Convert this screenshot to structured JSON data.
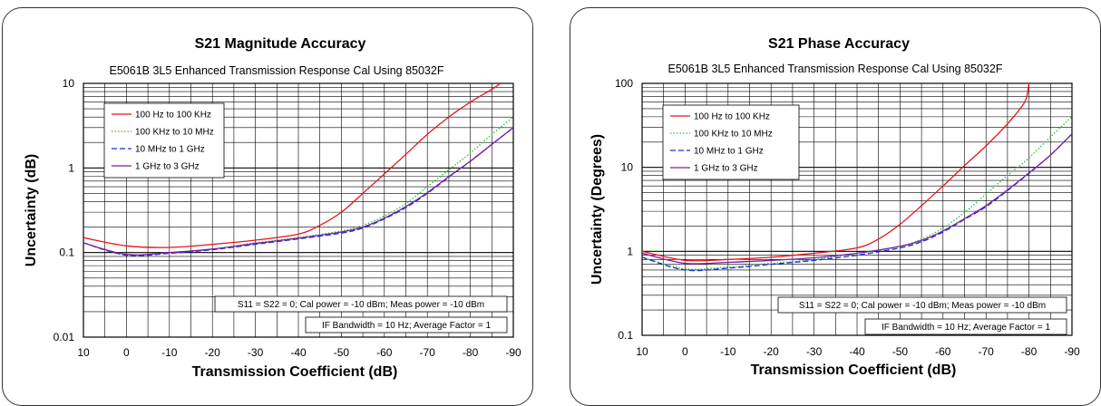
{
  "chart_data": [
    {
      "type": "line",
      "title": "S21 Magnitude Accuracy",
      "subtitle": "E5061B 3L5 Enhanced Transmission Response Cal Using 85032F",
      "xlabel": "Transmission Coefficient (dB)",
      "ylabel": "Uncertainty (dB)",
      "xlim": [
        10,
        -90
      ],
      "ylim": [
        0.01,
        10
      ],
      "yscale": "log",
      "grid": true,
      "x_ticks": [
        "10",
        "0",
        "-10",
        "-20",
        "-30",
        "-40",
        "-50",
        "-60",
        "-70",
        "-80",
        "-90"
      ],
      "y_ticks": [
        "0.01",
        "0.1",
        "1",
        "10"
      ],
      "legend_position": "top-left",
      "notes": [
        "S11 = S22 = 0; Cal power = -10 dBm; Meas power = -10 dBm",
        "IF Bandwidth = 10 Hz; Average Factor = 1"
      ],
      "series": [
        {
          "name": "100 Hz to 100 KHz",
          "color": "#e8141b",
          "dash": "solid",
          "x": [
            10,
            0,
            -10,
            -20,
            -30,
            -40,
            -45,
            -50,
            -55,
            -60,
            -65,
            -70,
            -75,
            -80,
            -85,
            -87
          ],
          "values": [
            0.15,
            0.12,
            0.115,
            0.125,
            0.14,
            0.165,
            0.21,
            0.3,
            0.5,
            0.85,
            1.45,
            2.5,
            4.0,
            6.0,
            8.5,
            10
          ]
        },
        {
          "name": "100 KHz to 10 MHz",
          "color": "#2db83d",
          "dash": "dotted",
          "x": [
            10,
            0,
            -10,
            -20,
            -30,
            -40,
            -50,
            -55,
            -60,
            -65,
            -70,
            -75,
            -80,
            -85,
            -90
          ],
          "values": [
            0.13,
            0.095,
            0.1,
            0.11,
            0.13,
            0.15,
            0.18,
            0.21,
            0.27,
            0.38,
            0.6,
            0.95,
            1.5,
            2.5,
            4.0
          ]
        },
        {
          "name": "10 MHz to 1 GHz",
          "color": "#1a2fd6",
          "dash": "dashed",
          "x": [
            10,
            0,
            -10,
            -20,
            -30,
            -40,
            -50,
            -55,
            -60,
            -65,
            -70,
            -75,
            -80,
            -85,
            -90
          ],
          "values": [
            0.13,
            0.093,
            0.098,
            0.108,
            0.125,
            0.145,
            0.17,
            0.195,
            0.25,
            0.34,
            0.5,
            0.78,
            1.2,
            1.9,
            3.0
          ]
        },
        {
          "name": "1 GHz to 3 GHz",
          "color": "#7a1fa0",
          "dash": "solid",
          "x": [
            10,
            0,
            -10,
            -20,
            -30,
            -40,
            -50,
            -55,
            -60,
            -65,
            -70,
            -75,
            -80,
            -85,
            -90
          ],
          "values": [
            0.13,
            0.095,
            0.1,
            0.11,
            0.128,
            0.148,
            0.175,
            0.2,
            0.255,
            0.35,
            0.51,
            0.79,
            1.2,
            1.9,
            3.0
          ]
        }
      ]
    },
    {
      "type": "line",
      "title": "S21 Phase Accuracy",
      "subtitle": "E5061B 3L5 Enhanced Transmission Response Cal Using 85032F",
      "xlabel": "Transmission Coefficient (dB)",
      "ylabel": "Uncertainty (Degrees)",
      "xlim": [
        10,
        -90
      ],
      "ylim": [
        0.1,
        100
      ],
      "yscale": "log",
      "grid": true,
      "x_ticks": [
        "10",
        "0",
        "-10",
        "-20",
        "-30",
        "-40",
        "-50",
        "-60",
        "-70",
        "-80",
        "-90"
      ],
      "y_ticks": [
        "0.1",
        "1",
        "10",
        "100"
      ],
      "legend_position": "top-left",
      "notes": [
        "S11 = S22 = 0; Cal power = -10 dBm; Meas power = -10 dBm",
        "IF Bandwidth = 10 Hz; Average Factor = 1"
      ],
      "series": [
        {
          "name": "100 Hz to 100 KHz",
          "color": "#e8141b",
          "dash": "solid",
          "x": [
            10,
            0,
            -10,
            -20,
            -30,
            -40,
            -45,
            -50,
            -55,
            -60,
            -65,
            -70,
            -75,
            -79,
            -80
          ],
          "values": [
            1.0,
            0.78,
            0.8,
            0.85,
            0.95,
            1.1,
            1.4,
            2.1,
            3.5,
            6.0,
            10.5,
            18,
            33,
            60,
            100
          ]
        },
        {
          "name": "100 KHz to 10 MHz",
          "color": "#2db83d",
          "dash": "dotted",
          "x": [
            10,
            0,
            -10,
            -20,
            -30,
            -40,
            -50,
            -55,
            -60,
            -65,
            -70,
            -75,
            -80,
            -85,
            -90
          ],
          "values": [
            0.85,
            0.62,
            0.65,
            0.72,
            0.8,
            0.95,
            1.15,
            1.4,
            1.9,
            2.9,
            4.8,
            8.0,
            13,
            23,
            40
          ]
        },
        {
          "name": "10 MHz to 1 GHz",
          "color": "#1a2fd6",
          "dash": "dashed",
          "x": [
            10,
            0,
            -10,
            -20,
            -30,
            -40,
            -50,
            -55,
            -60,
            -65,
            -70,
            -75,
            -80,
            -85,
            -90
          ],
          "values": [
            0.85,
            0.6,
            0.63,
            0.7,
            0.78,
            0.9,
            1.1,
            1.3,
            1.7,
            2.4,
            3.4,
            5.3,
            8.5,
            14,
            25
          ]
        },
        {
          "name": "1 GHz to 3 GHz",
          "color": "#7a1fa0",
          "dash": "solid",
          "x": [
            10,
            0,
            -10,
            -20,
            -30,
            -40,
            -50,
            -55,
            -60,
            -65,
            -70,
            -75,
            -80,
            -85,
            -90
          ],
          "values": [
            0.95,
            0.72,
            0.74,
            0.78,
            0.84,
            0.95,
            1.15,
            1.35,
            1.75,
            2.45,
            3.5,
            5.4,
            8.6,
            14,
            25
          ]
        }
      ]
    }
  ]
}
